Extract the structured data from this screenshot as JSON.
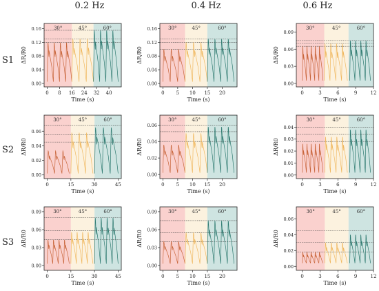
{
  "column_headers": [
    "0.2 Hz",
    "0.4 Hz",
    "0.6 Hz"
  ],
  "row_labels": [
    "S1",
    "S2",
    "S3"
  ],
  "chart_data": [
    {
      "type": "line",
      "row": "S1",
      "column": "0.2 Hz",
      "ylabel": "ΔR/R0",
      "xlabel": "Time (s)",
      "xlim": [
        -2,
        48
      ],
      "ylim": [
        -0.01,
        0.175
      ],
      "xticks": [
        0,
        8,
        16,
        24,
        32,
        40
      ],
      "yticks": [
        0,
        0.04,
        0.08,
        0.12,
        0.16
      ],
      "ytick_labels": [
        "0.00",
        "0.04",
        "0.08",
        "0.12",
        "0.16"
      ],
      "regions": [
        {
          "label": "30°",
          "x": [
            -2,
            16
          ],
          "color": "#f9c9c6"
        },
        {
          "label": "45°",
          "x": [
            16,
            30
          ],
          "color": "#fbf0d9"
        },
        {
          "label": "60°",
          "x": [
            30,
            48
          ],
          "color": "#c6dfdc"
        }
      ],
      "series": [
        {
          "segment": "30°",
          "x": [
            0,
            16
          ],
          "n_peaks": 4,
          "peak": 0.12,
          "baseline": 0.005,
          "color": "#c8653a"
        },
        {
          "segment": "45°",
          "x": [
            16,
            30
          ],
          "n_peaks": 3,
          "peak": 0.13,
          "baseline": 0.005,
          "color": "#f0b85f"
        },
        {
          "segment": "60°",
          "x": [
            30,
            46
          ],
          "n_peaks": 4,
          "peak": 0.155,
          "baseline": 0.005,
          "color": "#2e7a70"
        }
      ],
      "reference_lines": [
        0.12,
        0.13,
        0.155
      ]
    },
    {
      "type": "line",
      "row": "S1",
      "column": "0.4 Hz",
      "ylabel": "ΔR/R0",
      "xlabel": "Time (s)",
      "xlim": [
        -1,
        25
      ],
      "ylim": [
        -0.01,
        0.175
      ],
      "xticks": [
        0,
        5,
        10,
        15,
        20
      ],
      "yticks": [
        0,
        0.04,
        0.08,
        0.12,
        0.16
      ],
      "ytick_labels": [
        "0.00",
        "0.04",
        "0.08",
        "0.12",
        "0.16"
      ],
      "regions": [
        {
          "label": "30°",
          "x": [
            -1,
            7.5
          ],
          "color": "#f9c9c6"
        },
        {
          "label": "45°",
          "x": [
            7.5,
            15
          ],
          "color": "#fbf0d9"
        },
        {
          "label": "60°",
          "x": [
            15,
            25
          ],
          "color": "#c6dfdc"
        }
      ],
      "series": [
        {
          "segment": "30°",
          "x": [
            0,
            7.5
          ],
          "n_peaks": 3,
          "peak": 0.1,
          "baseline": 0.005,
          "color": "#c8653a"
        },
        {
          "segment": "45°",
          "x": [
            7.5,
            15
          ],
          "n_peaks": 3,
          "peak": 0.12,
          "baseline": 0.005,
          "color": "#f0b85f"
        },
        {
          "segment": "60°",
          "x": [
            15,
            24
          ],
          "n_peaks": 4,
          "peak": 0.13,
          "baseline": 0.005,
          "color": "#2e7a70"
        }
      ],
      "reference_lines": [
        0.1,
        0.12,
        0.13
      ]
    },
    {
      "type": "line",
      "row": "S1",
      "column": "0.6 Hz",
      "ylabel": "ΔR/R0",
      "xlabel": "Time (s)",
      "xlim": [
        -1,
        12
      ],
      "ylim": [
        -0.006,
        0.105
      ],
      "xticks": [
        0,
        3,
        6,
        9,
        12
      ],
      "yticks": [
        0,
        0.03,
        0.06,
        0.09
      ],
      "ytick_labels": [
        "0.00",
        "0.03",
        "0.06",
        "0.09"
      ],
      "regions": [
        {
          "label": "30°",
          "x": [
            -1,
            3.7
          ],
          "color": "#f9c9c6"
        },
        {
          "label": "45°",
          "x": [
            3.7,
            7.8
          ],
          "color": "#fbf0d9"
        },
        {
          "label": "60°",
          "x": [
            7.8,
            12
          ],
          "color": "#c6dfdc"
        }
      ],
      "series": [
        {
          "segment": "30°",
          "x": [
            0,
            3.5
          ],
          "n_peaks": 5,
          "peak": 0.065,
          "baseline": 0.005,
          "color": "#c8653a"
        },
        {
          "segment": "45°",
          "x": [
            3.7,
            7.6
          ],
          "n_peaks": 4,
          "peak": 0.07,
          "baseline": 0.005,
          "color": "#f0b85f"
        },
        {
          "segment": "60°",
          "x": [
            8,
            11.5
          ],
          "n_peaks": 4,
          "peak": 0.075,
          "baseline": 0.005,
          "color": "#2e7a70"
        }
      ],
      "reference_lines": [
        0.065,
        0.07,
        0.075
      ]
    },
    {
      "type": "line",
      "row": "S2",
      "column": "0.2 Hz",
      "ylabel": "ΔR/R0",
      "xlabel": "Time (s)",
      "xlim": [
        -2,
        47
      ],
      "ylim": [
        -0.005,
        0.082
      ],
      "xticks": [
        0,
        15,
        30,
        45
      ],
      "yticks": [
        0,
        0.02,
        0.04,
        0.06
      ],
      "ytick_labels": [
        "0.00",
        "0.02",
        "0.04",
        "0.06"
      ],
      "regions": [
        {
          "label": "30°",
          "x": [
            -2,
            15
          ],
          "color": "#f9c9c6"
        },
        {
          "label": "45°",
          "x": [
            15,
            30
          ],
          "color": "#fbf0d9"
        },
        {
          "label": "60°",
          "x": [
            30,
            47
          ],
          "color": "#c6dfdc"
        }
      ],
      "series": [
        {
          "segment": "30°",
          "x": [
            0,
            14
          ],
          "n_peaks": 3,
          "peak": 0.033,
          "baseline": 0.002,
          "color": "#c8653a"
        },
        {
          "segment": "45°",
          "x": [
            15,
            29
          ],
          "n_peaks": 3,
          "peak": 0.058,
          "baseline": 0.002,
          "color": "#f0b85f"
        },
        {
          "segment": "60°",
          "x": [
            30,
            45
          ],
          "n_peaks": 3,
          "peak": 0.065,
          "baseline": 0.002,
          "color": "#2e7a70"
        }
      ],
      "reference_lines": [
        0.045,
        0.055,
        0.068
      ]
    },
    {
      "type": "line",
      "row": "S2",
      "column": "0.4 Hz",
      "ylabel": "ΔR/R0",
      "xlabel": "Time (s)",
      "xlim": [
        -1,
        25
      ],
      "ylim": [
        -0.005,
        0.072
      ],
      "xticks": [
        0,
        5,
        10,
        15,
        20
      ],
      "yticks": [
        0,
        0.02,
        0.04,
        0.06
      ],
      "ytick_labels": [
        "0.00",
        "0.02",
        "0.04",
        "0.06"
      ],
      "regions": [
        {
          "label": "30°",
          "x": [
            -1,
            7.5
          ],
          "color": "#f9c9c6"
        },
        {
          "label": "45°",
          "x": [
            7.5,
            15
          ],
          "color": "#fbf0d9"
        },
        {
          "label": "60°",
          "x": [
            15,
            25
          ],
          "color": "#c6dfdc"
        }
      ],
      "series": [
        {
          "segment": "30°",
          "x": [
            0,
            7.5
          ],
          "n_peaks": 3,
          "peak": 0.036,
          "baseline": 0.002,
          "color": "#c8653a"
        },
        {
          "segment": "45°",
          "x": [
            7.5,
            15
          ],
          "n_peaks": 3,
          "peak": 0.05,
          "baseline": 0.002,
          "color": "#f0b85f"
        },
        {
          "segment": "60°",
          "x": [
            15,
            24
          ],
          "n_peaks": 4,
          "peak": 0.058,
          "baseline": 0.002,
          "color": "#2e7a70"
        }
      ],
      "reference_lines": [
        0.04,
        0.052,
        0.06
      ]
    },
    {
      "type": "line",
      "row": "S2",
      "column": "0.6 Hz",
      "ylabel": "ΔR/R0",
      "xlabel": "Time (s)",
      "xlim": [
        -1,
        12
      ],
      "ylim": [
        -0.003,
        0.05
      ],
      "xticks": [
        0,
        3,
        6,
        9,
        12
      ],
      "yticks": [
        0,
        0.01,
        0.02,
        0.03,
        0.04
      ],
      "ytick_labels": [
        "0.00",
        "0.01",
        "0.02",
        "0.03",
        "0.04"
      ],
      "regions": [
        {
          "label": "30°",
          "x": [
            -1,
            3.8
          ],
          "color": "#f9c9c6"
        },
        {
          "label": "45°",
          "x": [
            3.8,
            7.8
          ],
          "color": "#fbf0d9"
        },
        {
          "label": "60°",
          "x": [
            7.8,
            12
          ],
          "color": "#c6dfdc"
        }
      ],
      "series": [
        {
          "segment": "30°",
          "x": [
            0,
            3.5
          ],
          "n_peaks": 5,
          "peak": 0.026,
          "baseline": 0.002,
          "color": "#c8653a"
        },
        {
          "segment": "45°",
          "x": [
            3.8,
            7.6
          ],
          "n_peaks": 4,
          "peak": 0.032,
          "baseline": 0.002,
          "color": "#f0b85f"
        },
        {
          "segment": "60°",
          "x": [
            8,
            11.5
          ],
          "n_peaks": 4,
          "peak": 0.038,
          "baseline": 0.002,
          "color": "#2e7a70"
        }
      ],
      "reference_lines": [
        0.028,
        0.034,
        0.04
      ]
    },
    {
      "type": "line",
      "row": "S3",
      "column": "0.2 Hz",
      "ylabel": "ΔR/R0",
      "xlabel": "Time (s)",
      "xlim": [
        -2,
        47
      ],
      "ylim": [
        -0.008,
        0.098
      ],
      "xticks": [
        0,
        15,
        30,
        45
      ],
      "yticks": [
        0,
        0.03,
        0.06,
        0.09
      ],
      "ytick_labels": [
        "0.00",
        "0.03",
        "0.06",
        "0.09"
      ],
      "regions": [
        {
          "label": "30°",
          "x": [
            -2,
            15
          ],
          "color": "#f9c9c6"
        },
        {
          "label": "45°",
          "x": [
            15,
            30
          ],
          "color": "#fbf0d9"
        },
        {
          "label": "60°",
          "x": [
            30,
            47
          ],
          "color": "#c6dfdc"
        }
      ],
      "series": [
        {
          "segment": "30°",
          "x": [
            0,
            14
          ],
          "n_peaks": 4,
          "peak": 0.043,
          "baseline": 0.003,
          "color": "#c8653a"
        },
        {
          "segment": "45°",
          "x": [
            15,
            29
          ],
          "n_peaks": 4,
          "peak": 0.056,
          "baseline": 0.003,
          "color": "#f0b85f"
        },
        {
          "segment": "60°",
          "x": [
            30,
            45
          ],
          "n_peaks": 4,
          "peak": 0.08,
          "baseline": 0.003,
          "color": "#2e7a70"
        }
      ],
      "reference_lines": [
        0.043,
        0.058,
        0.08
      ]
    },
    {
      "type": "line",
      "row": "S3",
      "column": "0.4 Hz",
      "ylabel": "ΔR/R0",
      "xlabel": "Time (s)",
      "xlim": [
        -1,
        25
      ],
      "ylim": [
        -0.008,
        0.098
      ],
      "xticks": [
        0,
        5,
        10,
        15,
        20
      ],
      "yticks": [
        0,
        0.03,
        0.06,
        0.09
      ],
      "ytick_labels": [
        "0.00",
        "0.03",
        "0.06",
        "0.09"
      ],
      "regions": [
        {
          "label": "30°",
          "x": [
            -1,
            7.5
          ],
          "color": "#f9c9c6"
        },
        {
          "label": "45°",
          "x": [
            7.5,
            15
          ],
          "color": "#fbf0d9"
        },
        {
          "label": "60°",
          "x": [
            15,
            25
          ],
          "color": "#c6dfdc"
        }
      ],
      "series": [
        {
          "segment": "30°",
          "x": [
            0,
            7.5
          ],
          "n_peaks": 3,
          "peak": 0.04,
          "baseline": 0.003,
          "color": "#c8653a"
        },
        {
          "segment": "45°",
          "x": [
            7.5,
            15
          ],
          "n_peaks": 3,
          "peak": 0.055,
          "baseline": 0.003,
          "color": "#f0b85f"
        },
        {
          "segment": "60°",
          "x": [
            15,
            24
          ],
          "n_peaks": 4,
          "peak": 0.075,
          "baseline": 0.003,
          "color": "#2e7a70"
        }
      ],
      "reference_lines": [
        0.04,
        0.055,
        0.075
      ]
    },
    {
      "type": "line",
      "row": "S3",
      "column": "0.6 Hz",
      "ylabel": "ΔR/R0",
      "xlabel": "Time (s)",
      "xlim": [
        -1,
        12
      ],
      "ylim": [
        -0.005,
        0.075
      ],
      "xticks": [
        0,
        3,
        6,
        9,
        12
      ],
      "yticks": [
        0,
        0.02,
        0.04,
        0.06
      ],
      "ytick_labels": [
        "0.00",
        "0.02",
        "0.04",
        "0.06"
      ],
      "regions": [
        {
          "label": "30°",
          "x": [
            -1,
            3.8
          ],
          "color": "#f9c9c6"
        },
        {
          "label": "45°",
          "x": [
            3.8,
            7.8
          ],
          "color": "#fbf0d9"
        },
        {
          "label": "60°",
          "x": [
            7.8,
            12
          ],
          "color": "#c6dfdc"
        }
      ],
      "series": [
        {
          "segment": "30°",
          "x": [
            0,
            3.5
          ],
          "n_peaks": 5,
          "peak": 0.018,
          "baseline": 0.004,
          "color": "#c8653a"
        },
        {
          "segment": "45°",
          "x": [
            3.8,
            7.6
          ],
          "n_peaks": 4,
          "peak": 0.03,
          "baseline": 0.004,
          "color": "#f0b85f"
        },
        {
          "segment": "60°",
          "x": [
            8,
            11.5
          ],
          "n_peaks": 4,
          "peak": 0.04,
          "baseline": 0.004,
          "color": "#2e7a70"
        }
      ],
      "reference_lines": [
        0.018,
        0.03,
        0.045
      ]
    }
  ]
}
